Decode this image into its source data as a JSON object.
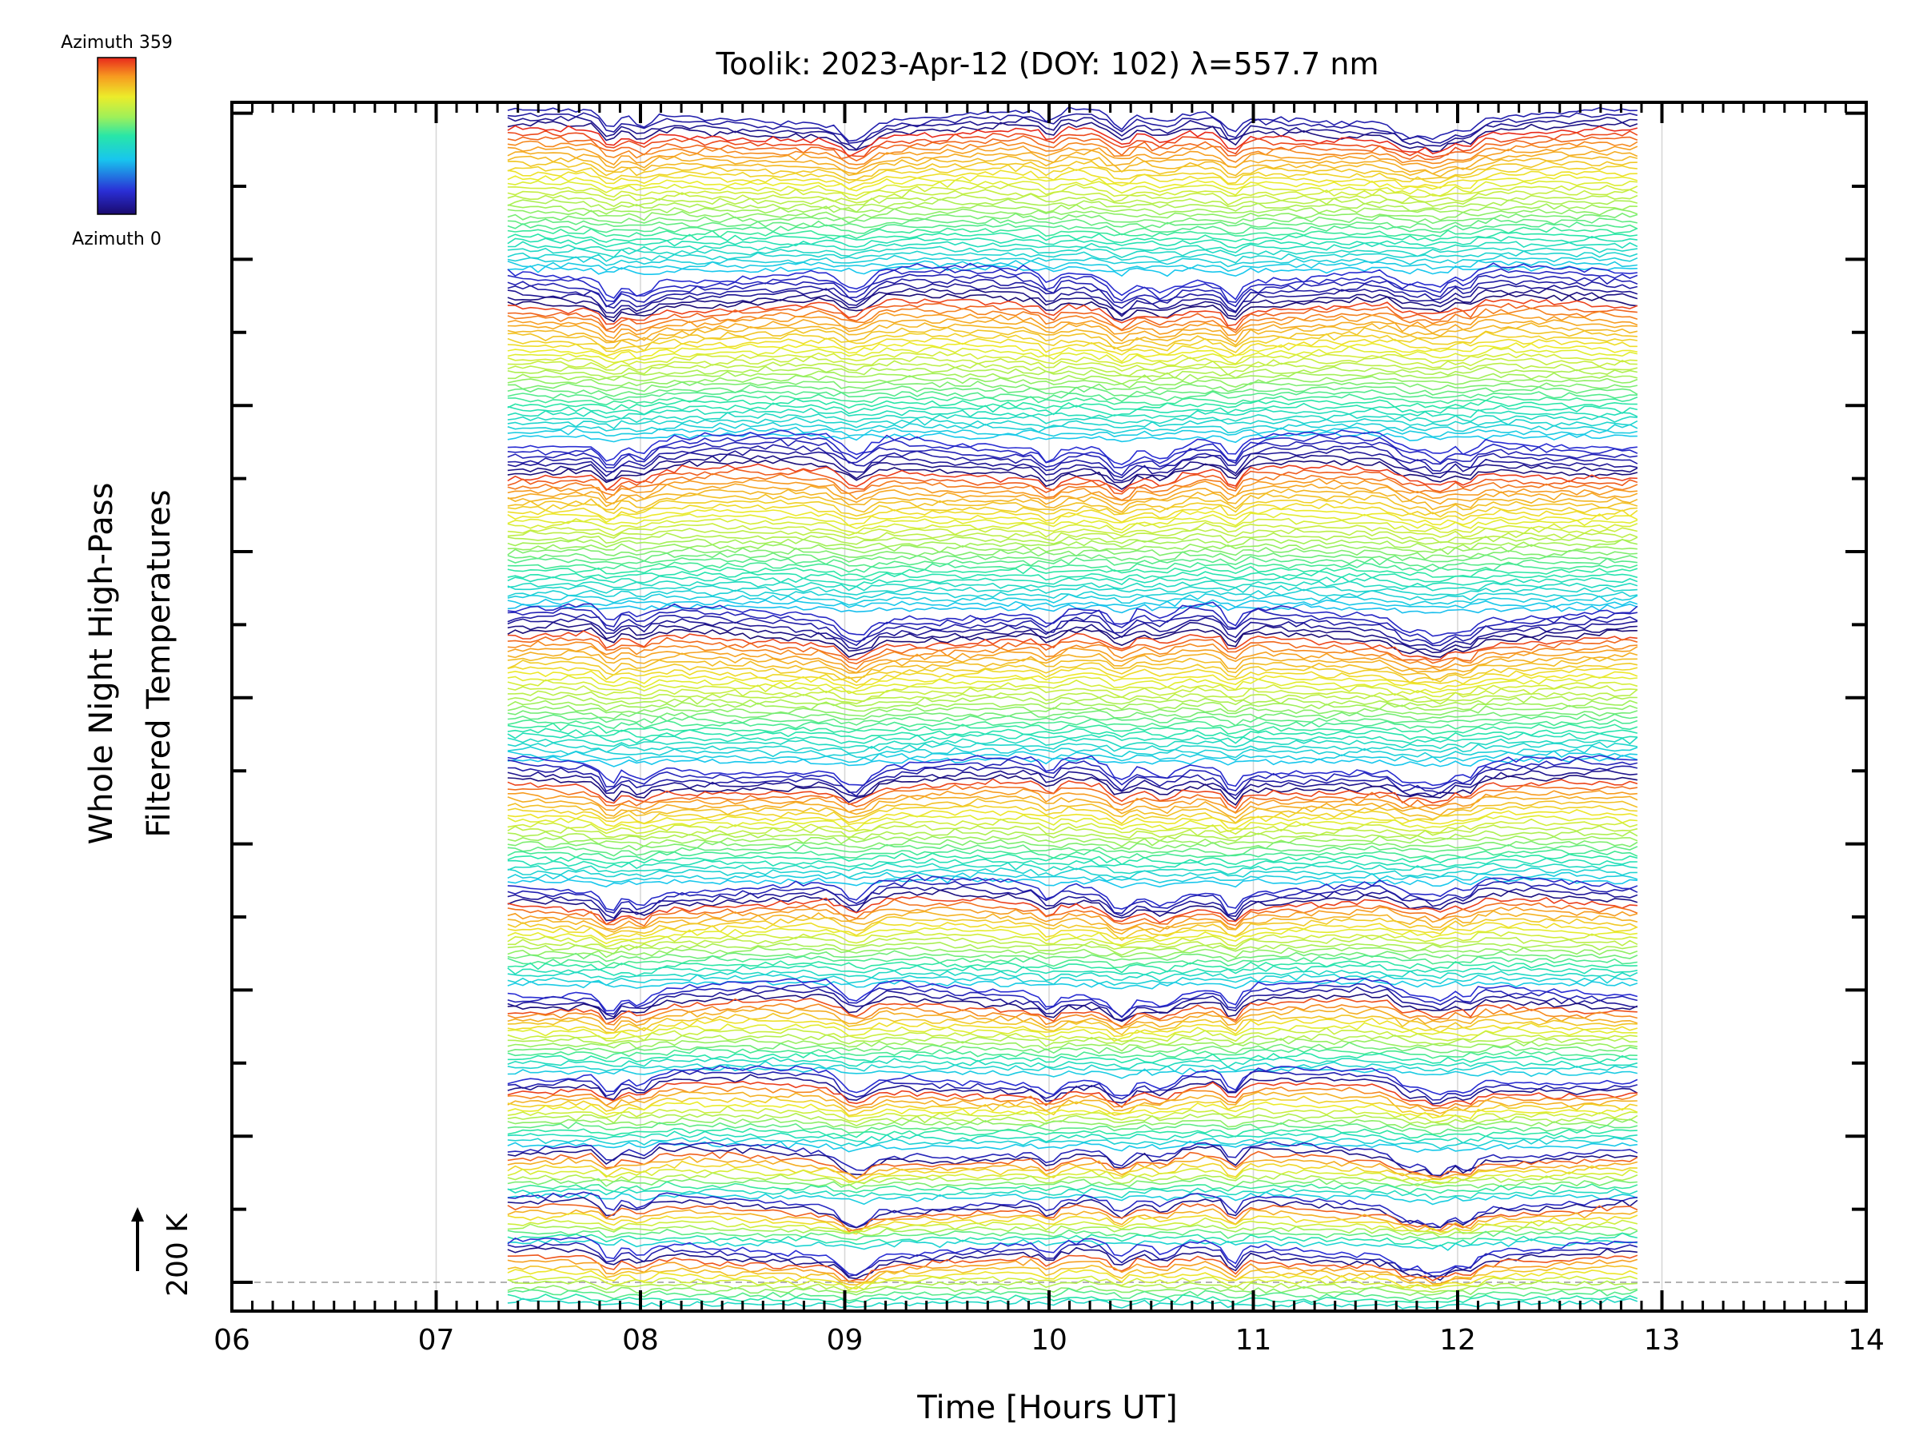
{
  "chart_data": {
    "type": "line",
    "title": "Toolik: 2023-Apr-12 (DOY: 102) λ=557.7 nm",
    "xlabel": "Time [Hours UT]",
    "ylabel_line1": "Whole Night High-Pass",
    "ylabel_line2": "Filtered Temperatures",
    "xlim": [
      6,
      14
    ],
    "x_ticks": [
      "06",
      "07",
      "08",
      "09",
      "10",
      "11",
      "12",
      "13",
      "14"
    ],
    "x_range_data": [
      7.35,
      12.88
    ],
    "scale_bar_label": "200 K",
    "colorbar": {
      "label_top": "Azimuth 359",
      "label_bottom": "Azimuth 0",
      "colormap": "rainbow"
    },
    "event_times": [
      7.85,
      8.0,
      9.05,
      10.0,
      10.35,
      10.55,
      10.9,
      11.75,
      11.9,
      12.05
    ],
    "grid": "vertical lines at 07, 08, 09, 10, 11, 12, 13",
    "legend": "colorbar top-left",
    "series_description": "stacked filtered temperature time series by zenith/azimuth, colored by azimuth 0-359"
  }
}
